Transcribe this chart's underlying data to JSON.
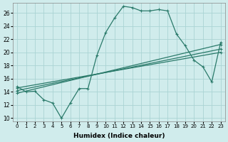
{
  "title": "",
  "xlabel": "Humidex (Indice chaleur)",
  "ylabel": "",
  "xlim": [
    -0.5,
    23.5
  ],
  "ylim": [
    9.5,
    27.5
  ],
  "xticks": [
    0,
    1,
    2,
    3,
    4,
    5,
    6,
    7,
    8,
    9,
    10,
    11,
    12,
    13,
    14,
    15,
    16,
    17,
    18,
    19,
    20,
    21,
    22,
    23
  ],
  "yticks": [
    10,
    12,
    14,
    16,
    18,
    20,
    22,
    24,
    26
  ],
  "bg_color": "#d0ecec",
  "grid_color": "#aad4d4",
  "line_color": "#2a7a6a",
  "series1_x": [
    0,
    1,
    2,
    3,
    4,
    5,
    6,
    7,
    8,
    9,
    10,
    11,
    12,
    13,
    14,
    15,
    16,
    17,
    18,
    19,
    20,
    21,
    22,
    23
  ],
  "series1_y": [
    14.8,
    14.0,
    14.1,
    12.8,
    12.3,
    10.0,
    12.3,
    14.5,
    14.5,
    19.5,
    23.0,
    25.2,
    27.0,
    26.8,
    26.3,
    26.3,
    26.5,
    26.3,
    22.8,
    21.0,
    18.8,
    17.8,
    15.5,
    21.5
  ],
  "line2_x": [
    0,
    23
  ],
  "line2_y": [
    13.8,
    21.2
  ],
  "line3_x": [
    0,
    23
  ],
  "line3_y": [
    14.2,
    20.5
  ],
  "line4_x": [
    0,
    23
  ],
  "line4_y": [
    14.6,
    20.0
  ]
}
